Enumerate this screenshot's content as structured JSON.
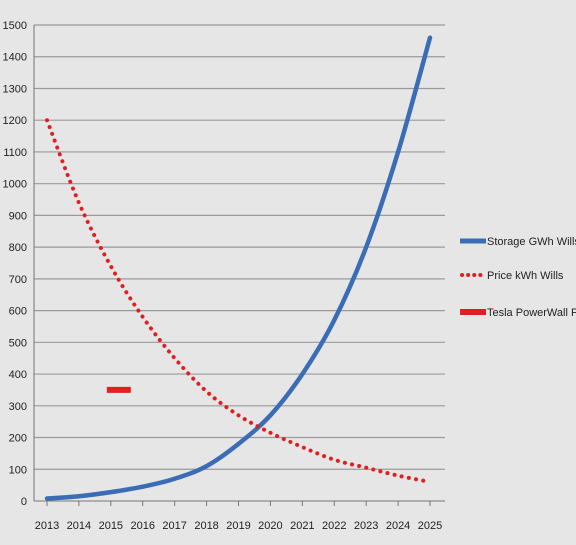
{
  "chart_data": {
    "type": "line",
    "title": "",
    "xlabel": "",
    "ylabel": "",
    "x": [
      2013,
      2014,
      2015,
      2016,
      2017,
      2018,
      2019,
      2020,
      2021,
      2022,
      2023,
      2024,
      2025
    ],
    "x_ticks": [
      "2013",
      "2014",
      "2015",
      "2016",
      "2017",
      "2018",
      "2019",
      "2020",
      "2021",
      "2022",
      "2023",
      "2024",
      "2025"
    ],
    "y_ticks": [
      "0",
      "100",
      "200",
      "300",
      "400",
      "500",
      "600",
      "700",
      "800",
      "900",
      "1000",
      "1100",
      "1200",
      "1300",
      "1400",
      "1500"
    ],
    "ylim": [
      0,
      1500
    ],
    "grid": true,
    "legend_position": "right",
    "series": [
      {
        "name": "Storage GWh Wills",
        "color": "#3a6db5",
        "style": "solid",
        "x": [
          2013,
          2014,
          2015,
          2016,
          2017,
          2018,
          2019,
          2020,
          2021,
          2022,
          2023,
          2024,
          2025
        ],
        "values": [
          8,
          15,
          28,
          45,
          70,
          110,
          180,
          270,
          400,
          570,
          800,
          1100,
          1460
        ]
      },
      {
        "name": "Price kWh Wills",
        "color": "#e02020",
        "style": "dotted",
        "x": [
          2013,
          2014,
          2015,
          2016,
          2017,
          2018,
          2019,
          2020,
          2021,
          2022,
          2023,
          2024,
          2025
        ],
        "values": [
          1200,
          940,
          740,
          580,
          450,
          345,
          270,
          215,
          170,
          130,
          105,
          80,
          60
        ]
      },
      {
        "name": "Tesla PowerWall Price",
        "color": "#e02020",
        "style": "segment",
        "x": [
          2015,
          2015.5
        ],
        "values": [
          350,
          350
        ]
      }
    ]
  }
}
